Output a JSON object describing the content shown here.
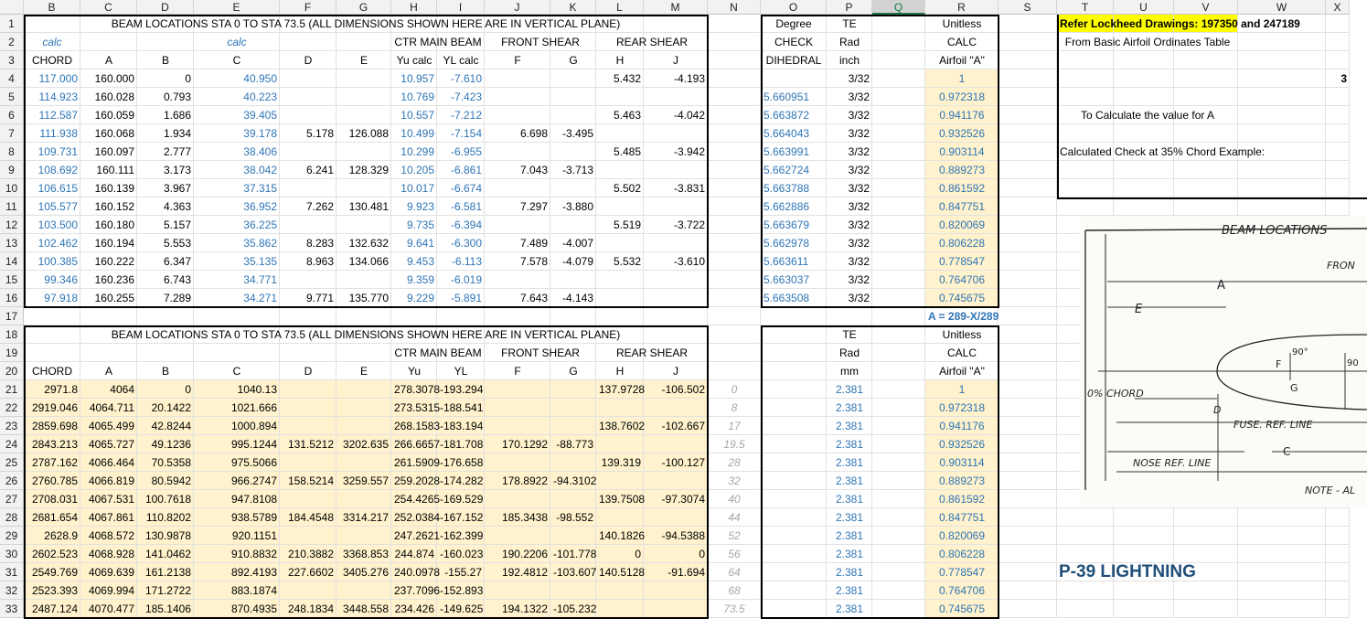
{
  "columns": [
    "B",
    "C",
    "D",
    "E",
    "F",
    "G",
    "H",
    "I",
    "J",
    "K",
    "L",
    "M",
    "N",
    "O",
    "P",
    "Q",
    "R",
    "S",
    "T",
    "U",
    "V",
    "W",
    "X"
  ],
  "selected_column": "Q",
  "rows": [
    "1",
    "2",
    "3",
    "4",
    "5",
    "6",
    "7",
    "8",
    "9",
    "10",
    "11",
    "12",
    "13",
    "14",
    "15",
    "16",
    "17",
    "18",
    "19",
    "20",
    "21",
    "22",
    "23",
    "24",
    "25",
    "26",
    "27",
    "28",
    "29",
    "30",
    "31",
    "32",
    "33"
  ],
  "top": {
    "title": "BEAM LOCATIONS STA 0 TO STA 73.5 (ALL DIMENSIONS SHOWN HERE ARE IN VERTICAL PLANE)",
    "calc1": "calc",
    "calc2": "calc",
    "group_main": "CTR MAIN BEAM",
    "group_front": "FRONT SHEAR",
    "group_rear": "REAR SHEAR",
    "headers": [
      "CHORD",
      "A",
      "B",
      "C",
      "D",
      "E",
      "Yu calc",
      "YL calc",
      "F",
      "G",
      "H",
      "J"
    ],
    "data": [
      [
        "117.000",
        "160.000",
        "0",
        "40.950",
        "",
        "",
        "10.957",
        "-7.610",
        "",
        "",
        "5.432",
        "-4.193"
      ],
      [
        "114.923",
        "160.028",
        "0.793",
        "40.223",
        "",
        "",
        "10.769",
        "-7.423",
        "",
        "",
        "",
        ""
      ],
      [
        "112.587",
        "160.059",
        "1.686",
        "39.405",
        "",
        "",
        "10.557",
        "-7.212",
        "",
        "",
        "5.463",
        "-4.042"
      ],
      [
        "111.938",
        "160.068",
        "1.934",
        "39.178",
        "5.178",
        "126.088",
        "10.499",
        "-7.154",
        "6.698",
        "-3.495",
        "",
        ""
      ],
      [
        "109.731",
        "160.097",
        "2.777",
        "38.406",
        "",
        "",
        "10.299",
        "-6.955",
        "",
        "",
        "5.485",
        "-3.942"
      ],
      [
        "108.692",
        "160.111",
        "3.173",
        "38.042",
        "6.241",
        "128.329",
        "10.205",
        "-6.861",
        "7.043",
        "-3.713",
        "",
        ""
      ],
      [
        "106.615",
        "160.139",
        "3.967",
        "37.315",
        "",
        "",
        "10.017",
        "-6.674",
        "",
        "",
        "5.502",
        "-3.831"
      ],
      [
        "105.577",
        "160.152",
        "4.363",
        "36.952",
        "7.262",
        "130.481",
        "9.923",
        "-6.581",
        "7.297",
        "-3.880",
        "",
        ""
      ],
      [
        "103.500",
        "160.180",
        "5.157",
        "36.225",
        "",
        "",
        "9.735",
        "-6.394",
        "",
        "",
        "5.519",
        "-3.722"
      ],
      [
        "102.462",
        "160.194",
        "5.553",
        "35.862",
        "8.283",
        "132.632",
        "9.641",
        "-6.300",
        "7.489",
        "-4.007",
        "",
        ""
      ],
      [
        "100.385",
        "160.222",
        "6.347",
        "35.135",
        "8.963",
        "134.066",
        "9.453",
        "-6.113",
        "7.578",
        "-4.079",
        "5.532",
        "-3.610"
      ],
      [
        "99.346",
        "160.236",
        "6.743",
        "34.771",
        "",
        "",
        "9.359",
        "-6.019",
        "",
        "",
        "",
        ""
      ],
      [
        "97.918",
        "160.255",
        "7.289",
        "34.271",
        "9.771",
        "135.770",
        "9.229",
        "-5.891",
        "7.643",
        "-4.143",
        "",
        ""
      ]
    ]
  },
  "right_top": {
    "h1": [
      "Degree",
      "TE",
      "Unitless"
    ],
    "h2": [
      "CHECK",
      "Rad",
      "CALC"
    ],
    "h3": [
      "DIHEDRAL",
      "inch",
      "Airfoil \"A\""
    ],
    "data": [
      [
        "",
        "3/32",
        "1"
      ],
      [
        "5.660951",
        "3/32",
        "0.972318"
      ],
      [
        "5.663872",
        "3/32",
        "0.941176"
      ],
      [
        "5.664043",
        "3/32",
        "0.932526"
      ],
      [
        "5.663991",
        "3/32",
        "0.903114"
      ],
      [
        "5.662724",
        "3/32",
        "0.889273"
      ],
      [
        "5.663788",
        "3/32",
        "0.861592"
      ],
      [
        "5.662886",
        "3/32",
        "0.847751"
      ],
      [
        "5.663679",
        "3/32",
        "0.820069"
      ],
      [
        "5.662978",
        "3/32",
        "0.806228"
      ],
      [
        "5.663611",
        "3/32",
        "0.778547"
      ],
      [
        "5.663037",
        "3/32",
        "0.764706"
      ],
      [
        "5.663508",
        "3/32",
        "0.745675"
      ]
    ],
    "formula": "A = 289-X/289"
  },
  "bottom": {
    "title": "BEAM LOCATIONS STA 0 TO STA 73.5 (ALL DIMENSIONS SHOWN HERE ARE IN VERTICAL PLANE)",
    "group_main": "CTR MAIN BEAM",
    "group_front": "FRONT SHEAR",
    "group_rear": "REAR SHEAR",
    "headers": [
      "CHORD",
      "A",
      "B",
      "C",
      "D",
      "E",
      "Yu",
      "YL",
      "F",
      "G",
      "H",
      "J"
    ],
    "data": [
      [
        "2971.8",
        "4064",
        "0",
        "1040.13",
        "",
        "",
        "278.3078",
        "-193.294",
        "",
        "",
        "137.9728",
        "-106.502"
      ],
      [
        "2919.046",
        "4064.711",
        "20.1422",
        "1021.666",
        "",
        "",
        "273.5315",
        "-188.541",
        "",
        "",
        "",
        ""
      ],
      [
        "2859.698",
        "4065.499",
        "42.8244",
        "1000.894",
        "",
        "",
        "268.1583",
        "-183.194",
        "",
        "",
        "138.7602",
        "-102.667"
      ],
      [
        "2843.213",
        "4065.727",
        "49.1236",
        "995.1244",
        "131.5212",
        "3202.635",
        "266.6657",
        "-181.708",
        "170.1292",
        "-88.773",
        "",
        ""
      ],
      [
        "2787.162",
        "4066.464",
        "70.5358",
        "975.5066",
        "",
        "",
        "261.5909",
        "-176.658",
        "",
        "",
        "139.319",
        "-100.127"
      ],
      [
        "2760.785",
        "4066.819",
        "80.5942",
        "966.2747",
        "158.5214",
        "3259.557",
        "259.2028",
        "-174.282",
        "178.8922",
        "-94.3102",
        "",
        ""
      ],
      [
        "2708.031",
        "4067.531",
        "100.7618",
        "947.8108",
        "",
        "",
        "254.4265",
        "-169.529",
        "",
        "",
        "139.7508",
        "-97.3074"
      ],
      [
        "2681.654",
        "4067.861",
        "110.8202",
        "938.5789",
        "184.4548",
        "3314.217",
        "252.0384",
        "-167.152",
        "185.3438",
        "-98.552",
        "",
        ""
      ],
      [
        "2628.9",
        "4068.572",
        "130.9878",
        "920.1151",
        "",
        "",
        "247.2621",
        "-162.399",
        "",
        "",
        "140.1826",
        "-94.5388"
      ],
      [
        "2602.523",
        "4068.928",
        "141.0462",
        "910.8832",
        "210.3882",
        "3368.853",
        "244.874",
        "-160.023",
        "190.2206",
        "-101.778",
        "0",
        "0"
      ],
      [
        "2549.769",
        "4069.639",
        "161.2138",
        "892.4193",
        "227.6602",
        "3405.276",
        "240.0978",
        "-155.27",
        "192.4812",
        "-103.607",
        "140.5128",
        "-91.694"
      ],
      [
        "2523.393",
        "4069.994",
        "171.2722",
        "883.1874",
        "",
        "",
        "237.7096",
        "-152.893",
        "",
        "",
        "",
        ""
      ],
      [
        "2487.124",
        "4070.477",
        "185.1406",
        "870.4935",
        "248.1834",
        "3448.558",
        "234.426",
        "-149.625",
        "194.1322",
        "-105.232",
        "",
        ""
      ]
    ],
    "stations": [
      "0",
      "8",
      "17",
      "19.5",
      "28",
      "32",
      "40",
      "44",
      "52",
      "56",
      "64",
      "68",
      "73.5"
    ]
  },
  "right_bottom": {
    "h1": [
      "TE",
      "Unitless"
    ],
    "h2": [
      "Rad",
      "CALC"
    ],
    "h3": [
      "mm",
      "Airfoil \"A\""
    ],
    "data": [
      [
        "2.381",
        "1"
      ],
      [
        "2.381",
        "0.972318"
      ],
      [
        "2.381",
        "0.941176"
      ],
      [
        "2.381",
        "0.932526"
      ],
      [
        "2.381",
        "0.903114"
      ],
      [
        "2.381",
        "0.889273"
      ],
      [
        "2.381",
        "0.861592"
      ],
      [
        "2.381",
        "0.847751"
      ],
      [
        "2.381",
        "0.820069"
      ],
      [
        "2.381",
        "0.806228"
      ],
      [
        "2.381",
        "0.778547"
      ],
      [
        "2.381",
        "0.764706"
      ],
      [
        "2.381",
        "0.745675"
      ]
    ]
  },
  "notes": {
    "lockheed": "Refer Lockheed Drawings: 197350 and 247189",
    "basic": "From Basic Airfoil Ordinates Table",
    "calc_a": "To Calculate the value for A",
    "check35": "Calculated Check at 35% Chord Example:",
    "x_edge": "3"
  },
  "sketch": {
    "title": "BEAM LOCATIONS",
    "front": "FRON",
    "a": "A",
    "e": "E",
    "angle1": "90°",
    "angle2": "90",
    "g": "G",
    "f": "F",
    "d": "D",
    "chord": "0% CHORD",
    "fuse": "FUSE. REF. LINE",
    "c": "C",
    "nose": "NOSE REF. LINE",
    "note": "NOTE - AL"
  },
  "lightning": "P-39 LIGHTNING",
  "accent_colors": {
    "blue": "#2e75b6",
    "highlight_yellow": "#ffff00",
    "cell_fill": "#fff2cc",
    "title_blue": "#1f4e79"
  }
}
